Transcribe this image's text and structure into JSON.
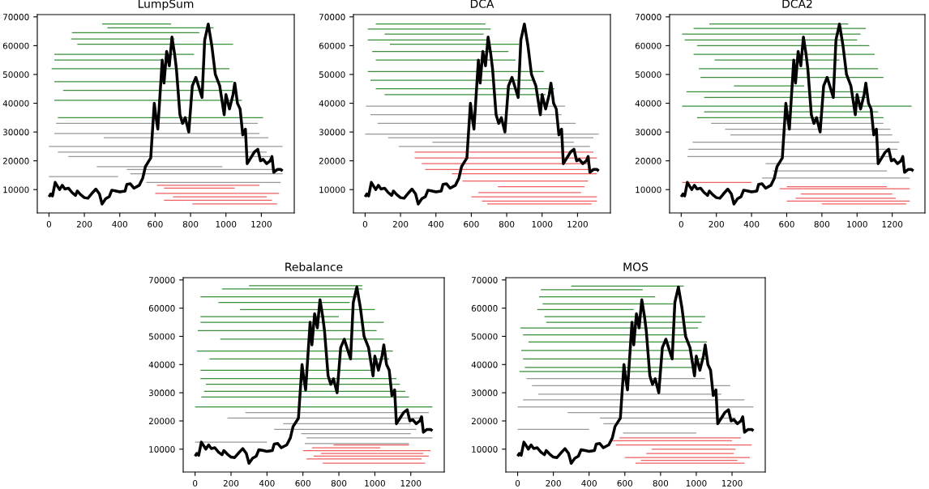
{
  "chart_data": [
    {
      "type": "line",
      "title": "LumpSum",
      "xlim": [
        -66,
        1386
      ],
      "xticks": [
        0,
        200,
        400,
        600,
        800,
        1000,
        1200
      ],
      "ylim": [
        1900,
        70800
      ],
      "yticks": [
        10000,
        20000,
        30000,
        40000,
        50000,
        60000,
        70000
      ],
      "series": [
        {
          "color": "#3a8f3a",
          "x": [
            300,
            690,
            null,
            330,
            930,
            null,
            130,
            850,
            null,
            125,
            710,
            null,
            160,
            1040,
            null,
            30,
            820,
            null,
            30,
            640,
            null,
            15,
            1020,
            null,
            30,
            1040,
            null,
            80,
            1060,
            null,
            30,
            1090,
            null,
            50,
            1210
          ],
          "values": [
            67500,
            67500,
            null,
            66200,
            66200,
            null,
            64500,
            64500,
            null,
            62300,
            62300,
            null,
            60500,
            60500,
            null,
            57000,
            57000,
            null,
            55000,
            55000,
            null,
            52000,
            52000,
            null,
            47500,
            47500,
            null,
            44500,
            44500,
            null,
            41000,
            41000,
            null,
            35000,
            35000
          ]
        },
        {
          "color": "#999999",
          "x": [
            40,
            1180,
            null,
            30,
            1190,
            null,
            310,
            1240,
            null,
            0,
            1320,
            null,
            50,
            1230,
            null,
            110,
            1250,
            null,
            270,
            980,
            null,
            440,
            1310,
            null,
            0,
            390,
            null,
            550,
            1310,
            null,
            460,
            1320
          ],
          "values": [
            33000,
            33000,
            null,
            29500,
            29500,
            null,
            28000,
            28000,
            null,
            25000,
            25000,
            null,
            23000,
            23000,
            null,
            21500,
            21500,
            null,
            18000,
            18000,
            null,
            17000,
            17000,
            null,
            14500,
            14500,
            null,
            12500,
            12500,
            null,
            15500,
            15500
          ]
        },
        {
          "color": "#f06060",
          "x": [
            610,
            1190,
            null,
            650,
            1050,
            null,
            600,
            1300,
            null,
            700,
            1230,
            null,
            650,
            1260,
            null,
            810,
            1290
          ],
          "values": [
            11500,
            11500,
            null,
            10500,
            10500,
            null,
            8700,
            8700,
            null,
            7500,
            7500,
            null,
            6300,
            6300,
            null,
            5000,
            5000
          ]
        },
        {
          "color": "#000000",
          "x": [
            0,
            10,
            20,
            35,
            50,
            60,
            75,
            90,
            110,
            130,
            150,
            160,
            180,
            200,
            220,
            240,
            265,
            285,
            300,
            320,
            340,
            355,
            380,
            400,
            430,
            440,
            460,
            480,
            510,
            530,
            545,
            560,
            575,
            595,
            605,
            615,
            640,
            650,
            665,
            680,
            695,
            710,
            720,
            740,
            755,
            770,
            790,
            810,
            830,
            850,
            865,
            880,
            900,
            920,
            940,
            965,
            980,
            990,
            1000,
            1020,
            1040,
            1050,
            1065,
            1080,
            1095,
            1110,
            1120,
            1140,
            1160,
            1180,
            1195,
            1210,
            1230,
            1250,
            1260,
            1270,
            1290,
            1310,
            1320
          ],
          "values": [
            7500,
            8500,
            7800,
            12500,
            11000,
            10000,
            11500,
            10200,
            10500,
            9000,
            8000,
            9500,
            8200,
            7200,
            7000,
            8500,
            10200,
            8500,
            5000,
            6800,
            7500,
            9800,
            9500,
            9200,
            9500,
            11800,
            12000,
            10500,
            11500,
            14000,
            18000,
            19500,
            21000,
            40000,
            35000,
            31000,
            55000,
            47000,
            58000,
            53000,
            63000,
            57000,
            52000,
            36000,
            33000,
            35000,
            30000,
            46000,
            49000,
            45000,
            42000,
            62000,
            67500,
            60000,
            50000,
            46000,
            40000,
            36000,
            43000,
            38000,
            43000,
            47000,
            40000,
            38000,
            29000,
            31000,
            19000,
            21000,
            23000,
            24000,
            20000,
            20500,
            19000,
            20000,
            21500,
            16000,
            17000,
            17000,
            16500
          ]
        }
      ]
    },
    {
      "type": "line",
      "title": "DCA",
      "xlim": [
        -66,
        1386
      ],
      "xticks": [
        0,
        200,
        400,
        600,
        800,
        1000,
        1200
      ],
      "ylim": [
        1900,
        70800
      ],
      "yticks": [
        10000,
        20000,
        30000,
        40000,
        50000,
        60000,
        70000
      ],
      "series": [
        {
          "color": "#3a8f3a",
          "x": [
            60,
            680,
            null,
            15,
            710,
            null,
            110,
            670,
            null,
            15,
            700,
            null,
            140,
            870,
            null,
            40,
            810,
            null,
            60,
            850,
            null,
            15,
            1010,
            null,
            30,
            960,
            null,
            60,
            1070,
            null,
            110,
            1020
          ],
          "values": [
            67500,
            67500,
            null,
            65800,
            65800,
            null,
            64000,
            64000,
            null,
            62000,
            62000,
            null,
            60500,
            60500,
            null,
            58000,
            58000,
            null,
            55000,
            55000,
            null,
            51000,
            51000,
            null,
            48000,
            48000,
            null,
            45000,
            45000,
            null,
            43000,
            43000
          ]
        },
        {
          "color": "#999999",
          "x": [
            5,
            1130,
            null,
            30,
            1110,
            null,
            70,
            1190,
            null,
            0,
            1320,
            null,
            130,
            1290,
            null,
            380,
            1180,
            null,
            190,
            1270
          ],
          "values": [
            39000,
            39000,
            null,
            36000,
            36000,
            null,
            33000,
            33000,
            null,
            29300,
            29300,
            null,
            28000,
            28000,
            null,
            26500,
            26500,
            null,
            25000,
            25000
          ]
        },
        {
          "color": "#f06060",
          "x": [
            280,
            1290,
            null,
            280,
            1310,
            null,
            320,
            1260,
            null,
            340,
            1310,
            null,
            490,
            1310,
            null,
            550,
            1260,
            null,
            750,
            1240,
            null,
            640,
            1220,
            null,
            600,
            1310,
            null,
            660,
            1310,
            null,
            690,
            1280
          ],
          "values": [
            23000,
            23000,
            null,
            21000,
            21000,
            null,
            19000,
            19000,
            null,
            17000,
            17000,
            null,
            15500,
            15500,
            null,
            13000,
            13000,
            null,
            11000,
            11000,
            null,
            9000,
            9000,
            null,
            7500,
            7500,
            null,
            6000,
            6000,
            null,
            5000,
            5000
          ]
        },
        {
          "color": "#000000",
          "x": [
            0,
            10,
            20,
            35,
            50,
            60,
            75,
            90,
            110,
            130,
            150,
            160,
            180,
            200,
            220,
            240,
            265,
            285,
            300,
            320,
            340,
            355,
            380,
            400,
            430,
            440,
            460,
            480,
            510,
            530,
            545,
            560,
            575,
            595,
            605,
            615,
            640,
            650,
            665,
            680,
            695,
            710,
            720,
            740,
            755,
            770,
            790,
            810,
            830,
            850,
            865,
            880,
            900,
            920,
            940,
            965,
            980,
            990,
            1000,
            1020,
            1040,
            1050,
            1065,
            1080,
            1095,
            1110,
            1120,
            1140,
            1160,
            1180,
            1195,
            1210,
            1230,
            1250,
            1260,
            1270,
            1290,
            1310,
            1320
          ],
          "values": [
            7500,
            8500,
            7800,
            12500,
            11000,
            10000,
            11500,
            10200,
            10500,
            9000,
            8000,
            9500,
            8200,
            7200,
            7000,
            8500,
            10200,
            8500,
            5000,
            6800,
            7500,
            9800,
            9500,
            9200,
            9500,
            11800,
            12000,
            10500,
            11500,
            14000,
            18000,
            19500,
            21000,
            40000,
            35000,
            31000,
            55000,
            47000,
            58000,
            53000,
            63000,
            57000,
            52000,
            36000,
            33000,
            35000,
            30000,
            46000,
            49000,
            45000,
            42000,
            62000,
            67500,
            60000,
            50000,
            46000,
            40000,
            36000,
            43000,
            38000,
            43000,
            47000,
            40000,
            38000,
            29000,
            31000,
            19000,
            21000,
            23000,
            24000,
            20000,
            20500,
            19000,
            20000,
            21500,
            16000,
            17000,
            17000,
            16500
          ]
        }
      ]
    },
    {
      "type": "line",
      "title": "DCA2",
      "xlim": [
        -66,
        1386
      ],
      "xticks": [
        0,
        200,
        400,
        600,
        800,
        1000,
        1200
      ],
      "ylim": [
        1900,
        70800
      ],
      "yticks": [
        10000,
        20000,
        30000,
        40000,
        50000,
        60000,
        70000
      ],
      "series": [
        {
          "color": "#3a8f3a",
          "x": [
            160,
            950,
            null,
            70,
            1050,
            null,
            5,
            1020,
            null,
            20,
            1000,
            null,
            90,
            1070,
            null,
            70,
            1100,
            null,
            190,
            900,
            null,
            100,
            1120,
            null,
            110,
            1150,
            null,
            300,
            700,
            null,
            30,
            1040,
            null,
            130,
            1060,
            null,
            5,
            1310,
            null,
            130,
            1120,
            null,
            90,
            1150
          ],
          "values": [
            67500,
            67500,
            null,
            66000,
            66000,
            null,
            64000,
            64000,
            null,
            62000,
            62000,
            null,
            60000,
            60000,
            null,
            57000,
            57000,
            null,
            55000,
            55000,
            null,
            52000,
            52000,
            null,
            49000,
            49000,
            null,
            46000,
            46000,
            null,
            44000,
            44000,
            null,
            42000,
            42000,
            null,
            39000,
            39000,
            null,
            37000,
            37000,
            null,
            35000,
            35000
          ]
        },
        {
          "color": "#999999",
          "x": [
            170,
            1150,
            null,
            250,
            1190,
            null,
            280,
            1200,
            null,
            65,
            1240,
            null,
            40,
            1230,
            null,
            35,
            1200,
            null,
            480,
            1130,
            null,
            520,
            1170,
            null,
            460,
            1300
          ],
          "values": [
            33000,
            33000,
            null,
            31000,
            31000,
            null,
            29000,
            29000,
            null,
            26500,
            26500,
            null,
            24000,
            24000,
            null,
            21500,
            21500,
            null,
            19000,
            19000,
            null,
            16500,
            16500,
            null,
            14000,
            14000
          ]
        },
        {
          "color": "#f06060",
          "x": [
            5,
            400,
            null,
            600,
            1170,
            null,
            560,
            1300,
            null,
            680,
            1200,
            null,
            650,
            1220,
            null,
            600,
            1300,
            null,
            800,
            1280
          ],
          "values": [
            12500,
            12500,
            null,
            11000,
            11000,
            null,
            10300,
            10300,
            null,
            8500,
            8500,
            null,
            7000,
            7000,
            null,
            6000,
            6000,
            null,
            5000,
            5000
          ]
        },
        {
          "color": "#000000",
          "x": [
            0,
            10,
            20,
            35,
            50,
            60,
            75,
            90,
            110,
            130,
            150,
            160,
            180,
            200,
            220,
            240,
            265,
            285,
            300,
            320,
            340,
            355,
            380,
            400,
            430,
            440,
            460,
            480,
            510,
            530,
            545,
            560,
            575,
            595,
            605,
            615,
            640,
            650,
            665,
            680,
            695,
            710,
            720,
            740,
            755,
            770,
            790,
            810,
            830,
            850,
            865,
            880,
            900,
            920,
            940,
            965,
            980,
            990,
            1000,
            1020,
            1040,
            1050,
            1065,
            1080,
            1095,
            1110,
            1120,
            1140,
            1160,
            1180,
            1195,
            1210,
            1230,
            1250,
            1260,
            1270,
            1290,
            1310,
            1320
          ],
          "values": [
            7500,
            8500,
            7800,
            12500,
            11000,
            10000,
            11500,
            10200,
            10500,
            9000,
            8000,
            9500,
            8200,
            7200,
            7000,
            8500,
            10200,
            8500,
            5000,
            6800,
            7500,
            9800,
            9500,
            9200,
            9500,
            11800,
            12000,
            10500,
            11500,
            14000,
            18000,
            19500,
            21000,
            40000,
            35000,
            31000,
            55000,
            47000,
            58000,
            53000,
            63000,
            57000,
            52000,
            36000,
            33000,
            35000,
            30000,
            46000,
            49000,
            45000,
            42000,
            62000,
            67500,
            60000,
            50000,
            46000,
            40000,
            36000,
            43000,
            38000,
            43000,
            47000,
            40000,
            38000,
            29000,
            31000,
            19000,
            21000,
            23000,
            24000,
            20000,
            20500,
            19000,
            20000,
            21500,
            16000,
            17000,
            17000,
            16500
          ]
        }
      ]
    },
    {
      "type": "line",
      "title": "Rebalance",
      "xlim": [
        -66,
        1386
      ],
      "xticks": [
        0,
        200,
        400,
        600,
        800,
        1000,
        1200
      ],
      "ylim": [
        1900,
        70800
      ],
      "yticks": [
        10000,
        20000,
        30000,
        40000,
        50000,
        60000,
        70000
      ],
      "series": [
        {
          "color": "#3a8f3a",
          "x": [
            300,
            930,
            null,
            150,
            930,
            null,
            30,
            900,
            null,
            130,
            860,
            null,
            250,
            1000,
            null,
            30,
            800,
            null,
            30,
            1050,
            null,
            15,
            1010,
            null,
            140,
            1050,
            null,
            10,
            1100,
            null,
            80,
            1080,
            null,
            30,
            1000,
            null,
            30,
            1120,
            null,
            60,
            1140,
            null,
            50,
            1170,
            null,
            35,
            1190,
            null,
            0,
            1320
          ],
          "values": [
            68000,
            68000,
            null,
            66800,
            66800,
            null,
            64000,
            64000,
            null,
            62000,
            62000,
            null,
            59500,
            59500,
            null,
            57000,
            57000,
            null,
            55000,
            55000,
            null,
            52000,
            52000,
            null,
            49000,
            49000,
            null,
            44800,
            44800,
            null,
            42000,
            42000,
            null,
            38000,
            38000,
            null,
            35000,
            35000,
            null,
            33000,
            33000,
            null,
            30500,
            30500,
            null,
            28500,
            28500,
            null,
            25000,
            25000
          ]
        },
        {
          "color": "#999999",
          "x": [
            280,
            1300,
            null,
            180,
            1270,
            null,
            490,
            1200,
            null,
            440,
            1230,
            null,
            590,
            1200,
            null,
            620,
            1320,
            null,
            0,
            400,
            null,
            610,
            1190
          ],
          "values": [
            23000,
            23000,
            null,
            21000,
            21000,
            null,
            19000,
            19000,
            null,
            17000,
            17000,
            null,
            15500,
            15500,
            null,
            14000,
            14000,
            null,
            12500,
            12500,
            null,
            12000,
            12000
          ]
        },
        {
          "color": "#f06060",
          "x": [
            770,
            1190,
            null,
            650,
            1030,
            null,
            600,
            1310,
            null,
            700,
            1270,
            null,
            660,
            1300,
            null,
            620,
            1260,
            null,
            710,
            1280
          ],
          "values": [
            11500,
            11500,
            null,
            10500,
            10500,
            null,
            9500,
            9500,
            null,
            8500,
            8500,
            null,
            7500,
            7500,
            null,
            6500,
            6500,
            null,
            5000,
            5000
          ]
        },
        {
          "color": "#000000",
          "x": [
            0,
            10,
            20,
            35,
            50,
            60,
            75,
            90,
            110,
            130,
            150,
            160,
            180,
            200,
            220,
            240,
            265,
            285,
            300,
            320,
            340,
            355,
            380,
            400,
            430,
            440,
            460,
            480,
            510,
            530,
            545,
            560,
            575,
            595,
            605,
            615,
            640,
            650,
            665,
            680,
            695,
            710,
            720,
            740,
            755,
            770,
            790,
            810,
            830,
            850,
            865,
            880,
            900,
            920,
            940,
            965,
            980,
            990,
            1000,
            1020,
            1040,
            1050,
            1065,
            1080,
            1095,
            1110,
            1120,
            1140,
            1160,
            1180,
            1195,
            1210,
            1230,
            1250,
            1260,
            1270,
            1290,
            1310,
            1320
          ],
          "values": [
            7500,
            8500,
            7800,
            12500,
            11000,
            10000,
            11500,
            10200,
            10500,
            9000,
            8000,
            9500,
            8200,
            7200,
            7000,
            8500,
            10200,
            8500,
            5000,
            6800,
            7500,
            9800,
            9500,
            9200,
            9500,
            11800,
            12000,
            10500,
            11500,
            14000,
            18000,
            19500,
            21000,
            40000,
            35000,
            31000,
            55000,
            47000,
            58000,
            53000,
            63000,
            57000,
            52000,
            36000,
            33000,
            35000,
            30000,
            46000,
            49000,
            45000,
            42000,
            62000,
            67500,
            60000,
            50000,
            46000,
            40000,
            36000,
            43000,
            38000,
            43000,
            47000,
            40000,
            38000,
            29000,
            31000,
            19000,
            21000,
            23000,
            24000,
            20000,
            20500,
            19000,
            20000,
            21500,
            16000,
            17000,
            17000,
            16500
          ]
        }
      ]
    },
    {
      "type": "line",
      "title": "MOS",
      "xlim": [
        -66,
        1386
      ],
      "xticks": [
        0,
        200,
        400,
        600,
        800,
        1000,
        1200
      ],
      "ylim": [
        1900,
        70800
      ],
      "yticks": [
        10000,
        20000,
        30000,
        40000,
        50000,
        60000,
        70000
      ],
      "series": [
        {
          "color": "#3a8f3a",
          "x": [
            300,
            930,
            null,
            130,
            700,
            null,
            120,
            770,
            null,
            140,
            870,
            null,
            110,
            650,
            null,
            150,
            1050,
            null,
            160,
            1030,
            null,
            15,
            1010,
            null,
            30,
            950,
            null,
            60,
            1060,
            null,
            20,
            1030,
            null,
            30,
            1070,
            null,
            40,
            1000,
            null,
            10,
            800
          ],
          "values": [
            67800,
            67800,
            null,
            66500,
            66500,
            null,
            64000,
            64000,
            null,
            61500,
            61500,
            null,
            59500,
            59500,
            null,
            57000,
            57000,
            null,
            55000,
            55000,
            null,
            53000,
            53000,
            null,
            50500,
            50500,
            null,
            48000,
            48000,
            null,
            45000,
            45000,
            null,
            42000,
            42000,
            null,
            39000,
            39000,
            null,
            37500,
            37500
          ]
        },
        {
          "color": "#999999",
          "x": [
            50,
            1050,
            null,
            80,
            1190,
            null,
            115,
            1140,
            null,
            30,
            1270,
            null,
            0,
            1320,
            null,
            280,
            1120,
            null,
            460,
            1220,
            null,
            480,
            1230,
            null,
            0,
            400,
            null,
            590,
            1000
          ],
          "values": [
            35000,
            35000,
            null,
            32500,
            32500,
            null,
            29500,
            29500,
            null,
            27500,
            27500,
            null,
            25000,
            25000,
            null,
            23000,
            23000,
            null,
            21000,
            21000,
            null,
            19000,
            19000,
            null,
            17000,
            17000,
            null,
            15700,
            15700
          ]
        },
        {
          "color": "#f06060",
          "x": [
            570,
            1250,
            null,
            530,
            1200,
            null,
            550,
            1310,
            null,
            750,
            1220,
            null,
            720,
            1210,
            null,
            600,
            1300,
            null,
            690,
            1230,
            null,
            660,
            1270
          ],
          "values": [
            14000,
            14000,
            null,
            13000,
            13000,
            null,
            11500,
            11500,
            null,
            10000,
            10000,
            null,
            8500,
            8500,
            null,
            7000,
            7000,
            null,
            6000,
            6000,
            null,
            5000,
            5000
          ]
        },
        {
          "color": "#000000",
          "x": [
            0,
            10,
            20,
            35,
            50,
            60,
            75,
            90,
            110,
            130,
            150,
            160,
            180,
            200,
            220,
            240,
            265,
            285,
            300,
            320,
            340,
            355,
            380,
            400,
            430,
            440,
            460,
            480,
            510,
            530,
            545,
            560,
            575,
            595,
            605,
            615,
            640,
            650,
            665,
            680,
            695,
            710,
            720,
            740,
            755,
            770,
            790,
            810,
            830,
            850,
            865,
            880,
            900,
            920,
            940,
            965,
            980,
            990,
            1000,
            1020,
            1040,
            1050,
            1065,
            1080,
            1095,
            1110,
            1120,
            1140,
            1160,
            1180,
            1195,
            1210,
            1230,
            1250,
            1260,
            1270,
            1290,
            1310,
            1320
          ],
          "values": [
            7500,
            8500,
            7800,
            12500,
            11000,
            10000,
            11500,
            10200,
            10500,
            9000,
            8000,
            9500,
            8200,
            7200,
            7000,
            8500,
            10200,
            8500,
            5000,
            6800,
            7500,
            9800,
            9500,
            9200,
            9500,
            11800,
            12000,
            10500,
            11500,
            14000,
            18000,
            19500,
            21000,
            40000,
            35000,
            31000,
            55000,
            47000,
            58000,
            53000,
            63000,
            57000,
            52000,
            36000,
            33000,
            35000,
            30000,
            46000,
            49000,
            45000,
            42000,
            62000,
            67500,
            60000,
            50000,
            46000,
            40000,
            36000,
            43000,
            38000,
            43000,
            47000,
            40000,
            38000,
            29000,
            31000,
            19000,
            21000,
            23000,
            24000,
            20000,
            20500,
            19000,
            20000,
            21500,
            16000,
            17000,
            17000,
            16500
          ]
        }
      ]
    }
  ]
}
